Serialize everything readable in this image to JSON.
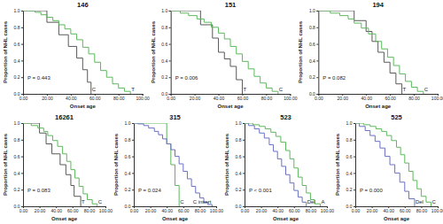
{
  "chart_data": [
    {
      "type": "line",
      "title": "146",
      "x_label": "Onset age",
      "y_label": "Proportion of NHL cases",
      "xlim": [
        0,
        100
      ],
      "ylim": [
        0,
        1
      ],
      "xticks": [
        {
          "value": 0,
          "label": "0.00"
        },
        {
          "value": 20,
          "label": "20.00"
        },
        {
          "value": 40,
          "label": "40.00"
        },
        {
          "value": 60,
          "label": "60.00"
        },
        {
          "value": 80,
          "label": "80.00"
        },
        {
          "value": 100,
          "label": "100.00"
        }
      ],
      "yticks": [
        {
          "value": 0,
          "label": "0.0"
        },
        {
          "value": 0.2,
          "label": "0.2"
        },
        {
          "value": 0.4,
          "label": "0.4"
        },
        {
          "value": 0.6,
          "label": "0.6"
        },
        {
          "value": 0.8,
          "label": "0.8"
        },
        {
          "value": 1,
          "label": "1.0"
        }
      ],
      "annotations": [
        "P = 0.443"
      ],
      "series": [
        {
          "name": "C",
          "color": "#595959",
          "line_style": "step",
          "x": [
            0,
            20,
            30,
            38,
            45,
            50,
            54,
            57
          ],
          "values": [
            1,
            0.86,
            0.71,
            0.57,
            0.43,
            0.29,
            0.14,
            0
          ]
        },
        {
          "name": "T",
          "color": "#5cb85c",
          "line_style": "step",
          "x": [
            0,
            10,
            15,
            20,
            25,
            30,
            35,
            40,
            45,
            50,
            55,
            60,
            65,
            70,
            75,
            80,
            85,
            90
          ],
          "values": [
            1,
            0.98,
            0.95,
            0.92,
            0.88,
            0.83,
            0.78,
            0.72,
            0.65,
            0.56,
            0.48,
            0.38,
            0.28,
            0.2,
            0.12,
            0.07,
            0.03,
            0
          ]
        }
      ]
    },
    {
      "type": "line",
      "title": "151",
      "x_label": "Onset age",
      "y_label": "Proportion of NHL cases",
      "xlim": [
        0,
        100
      ],
      "ylim": [
        0,
        1
      ],
      "xticks": [
        {
          "value": 0,
          "label": "0.00"
        },
        {
          "value": 20,
          "label": "20.00"
        },
        {
          "value": 40,
          "label": "40.00"
        },
        {
          "value": 60,
          "label": "60.00"
        },
        {
          "value": 80,
          "label": "80.00"
        },
        {
          "value": 100,
          "label": "100.00"
        }
      ],
      "yticks": [
        {
          "value": 0,
          "label": "0.0"
        },
        {
          "value": 0.2,
          "label": "0.2"
        },
        {
          "value": 0.4,
          "label": "0.4"
        },
        {
          "value": 0.6,
          "label": "0.6"
        },
        {
          "value": 0.8,
          "label": "0.8"
        },
        {
          "value": 1,
          "label": "1.0"
        }
      ],
      "annotations": [
        "P = 0.006"
      ],
      "series": [
        {
          "name": "T",
          "color": "#595959",
          "line_style": "step",
          "x": [
            0,
            25,
            35,
            40,
            45,
            50,
            55,
            60
          ],
          "values": [
            1,
            0.83,
            0.67,
            0.5,
            0.42,
            0.33,
            0.17,
            0
          ]
        },
        {
          "name": "C",
          "color": "#5cb85c",
          "line_style": "step",
          "x": [
            0,
            8,
            15,
            22,
            28,
            34,
            40,
            45,
            50,
            55,
            60,
            65,
            70,
            75,
            80,
            85,
            90
          ],
          "values": [
            1,
            0.97,
            0.94,
            0.9,
            0.86,
            0.8,
            0.73,
            0.66,
            0.57,
            0.48,
            0.39,
            0.3,
            0.21,
            0.13,
            0.07,
            0.03,
            0
          ]
        }
      ]
    },
    {
      "type": "line",
      "title": "194",
      "x_label": "Onset age",
      "y_label": "Proportion of NHL cases",
      "xlim": [
        0,
        100
      ],
      "ylim": [
        0,
        1
      ],
      "xticks": [
        {
          "value": 0,
          "label": "0.00"
        },
        {
          "value": 20,
          "label": "20.00"
        },
        {
          "value": 40,
          "label": "40.00"
        },
        {
          "value": 60,
          "label": "60.00"
        },
        {
          "value": 80,
          "label": "80.00"
        },
        {
          "value": 100,
          "label": "100.00"
        }
      ],
      "yticks": [
        {
          "value": 0,
          "label": "0.0"
        },
        {
          "value": 0.2,
          "label": "0.2"
        },
        {
          "value": 0.4,
          "label": "0.4"
        },
        {
          "value": 0.6,
          "label": "0.6"
        },
        {
          "value": 0.8,
          "label": "0.8"
        },
        {
          "value": 1,
          "label": "1.0"
        }
      ],
      "annotations": [
        "P = 0.082"
      ],
      "series": [
        {
          "name": "T",
          "color": "#595959",
          "line_style": "step",
          "x": [
            0,
            30,
            40,
            45,
            50,
            55,
            60,
            65,
            70
          ],
          "values": [
            1,
            0.88,
            0.75,
            0.63,
            0.5,
            0.38,
            0.25,
            0.12,
            0
          ]
        },
        {
          "name": "C",
          "color": "#5cb85c",
          "line_style": "step",
          "x": [
            0,
            10,
            18,
            25,
            30,
            36,
            42,
            48,
            53,
            58,
            63,
            68,
            73,
            78,
            83,
            88
          ],
          "values": [
            1,
            0.97,
            0.94,
            0.9,
            0.85,
            0.79,
            0.72,
            0.63,
            0.54,
            0.44,
            0.34,
            0.24,
            0.15,
            0.08,
            0.03,
            0
          ]
        }
      ]
    },
    {
      "type": "line",
      "title": "16261",
      "x_label": "Onset age",
      "y_label": "Proportion of NHL cases",
      "xlim": [
        0,
        100
      ],
      "ylim": [
        0,
        1
      ],
      "xticks": [
        {
          "value": 0,
          "label": "0.00"
        },
        {
          "value": 20,
          "label": "20.00"
        },
        {
          "value": 40,
          "label": "40.00"
        },
        {
          "value": 60,
          "label": "60.00"
        },
        {
          "value": 80,
          "label": "80.00"
        },
        {
          "value": 100,
          "label": "100.00"
        }
      ],
      "yticks": [
        {
          "value": 0,
          "label": "0.0"
        },
        {
          "value": 0.2,
          "label": "0.2"
        },
        {
          "value": 0.4,
          "label": "0.4"
        },
        {
          "value": 0.6,
          "label": "0.6"
        },
        {
          "value": 0.8,
          "label": "0.8"
        },
        {
          "value": 1,
          "label": "1.0"
        }
      ],
      "annotations": [
        "P = 0.083"
      ],
      "series": [
        {
          "name": "T",
          "color": "#595959",
          "line_style": "step",
          "x": [
            0,
            20,
            28,
            35,
            45,
            52,
            58,
            62,
            70
          ],
          "values": [
            1,
            0.88,
            0.75,
            0.63,
            0.5,
            0.38,
            0.25,
            0.12,
            0
          ]
        },
        {
          "name": "C",
          "color": "#5cb85c",
          "line_style": "step",
          "x": [
            0,
            10,
            18,
            25,
            30,
            36,
            42,
            48,
            53,
            58,
            63,
            68,
            73,
            78,
            84,
            90
          ],
          "values": [
            1,
            0.97,
            0.94,
            0.9,
            0.85,
            0.79,
            0.72,
            0.63,
            0.54,
            0.44,
            0.34,
            0.24,
            0.15,
            0.08,
            0.03,
            0
          ]
        }
      ]
    },
    {
      "type": "line",
      "title": "315",
      "x_label": "Onset age",
      "y_label": "Proportion of NHL cases",
      "xlim": [
        0,
        100
      ],
      "ylim": [
        0,
        1
      ],
      "xticks": [
        {
          "value": 0,
          "label": "0.00"
        },
        {
          "value": 20,
          "label": "20.00"
        },
        {
          "value": 40,
          "label": "40.00"
        },
        {
          "value": 60,
          "label": "60.00"
        },
        {
          "value": 80,
          "label": "80.00"
        },
        {
          "value": 100,
          "label": "100.00"
        }
      ],
      "yticks": [
        {
          "value": 0,
          "label": "0.0"
        },
        {
          "value": 0.2,
          "label": "0.2"
        },
        {
          "value": 0.4,
          "label": "0.4"
        },
        {
          "value": 0.6,
          "label": "0.6"
        },
        {
          "value": 0.8,
          "label": "0.8"
        },
        {
          "value": 1,
          "label": "1.0"
        }
      ],
      "annotations": [
        "P = 0.024"
      ],
      "series": [
        {
          "name": "C",
          "color": "#5cb85c",
          "line_style": "step",
          "x": [
            0,
            40,
            45,
            50,
            55
          ],
          "values": [
            1,
            0.75,
            0.5,
            0.25,
            0
          ]
        },
        {
          "name": "C insert",
          "color": "#6a70c4",
          "line_style": "step",
          "x": [
            0,
            5,
            12,
            18,
            25,
            30,
            35,
            40,
            45,
            50,
            55,
            60,
            65,
            70,
            75,
            80,
            85,
            90,
            95
          ],
          "values": [
            1,
            0.99,
            0.97,
            0.94,
            0.9,
            0.86,
            0.81,
            0.75,
            0.68,
            0.6,
            0.51,
            0.42,
            0.33,
            0.24,
            0.16,
            0.1,
            0.05,
            0.02,
            0
          ]
        }
      ]
    },
    {
      "type": "line",
      "title": "523",
      "x_label": "Onset age",
      "y_label": "Proportion of NHL cases",
      "xlim": [
        0,
        100
      ],
      "ylim": [
        0,
        1
      ],
      "xticks": [
        {
          "value": 0,
          "label": "0.00"
        },
        {
          "value": 20,
          "label": "20.00"
        },
        {
          "value": 40,
          "label": "40.00"
        },
        {
          "value": 60,
          "label": "60.00"
        },
        {
          "value": 80,
          "label": "80.00"
        },
        {
          "value": 100,
          "label": "100.00"
        }
      ],
      "yticks": [
        {
          "value": 0,
          "label": "0.0"
        },
        {
          "value": 0.2,
          "label": "0.2"
        },
        {
          "value": 0.4,
          "label": "0.4"
        },
        {
          "value": 0.6,
          "label": "0.6"
        },
        {
          "value": 0.8,
          "label": "0.8"
        },
        {
          "value": 1,
          "label": "1.0"
        }
      ],
      "annotations": [
        "P < 0.001"
      ],
      "series": [
        {
          "name": "Del",
          "color": "#6a70c4",
          "line_style": "step",
          "x": [
            0,
            5,
            12,
            18,
            24,
            30,
            35,
            40,
            45,
            50,
            55,
            60,
            65,
            70,
            75
          ],
          "values": [
            1,
            0.97,
            0.93,
            0.88,
            0.82,
            0.74,
            0.66,
            0.57,
            0.48,
            0.38,
            0.28,
            0.19,
            0.11,
            0.05,
            0
          ]
        },
        {
          "name": "A",
          "color": "#5cb85c",
          "line_style": "step",
          "x": [
            0,
            10,
            18,
            25,
            32,
            38,
            44,
            50,
            55,
            60,
            65,
            70,
            75,
            80,
            85,
            92
          ],
          "values": [
            1,
            0.98,
            0.96,
            0.93,
            0.89,
            0.84,
            0.77,
            0.67,
            0.57,
            0.46,
            0.35,
            0.25,
            0.16,
            0.08,
            0.03,
            0
          ]
        }
      ]
    },
    {
      "type": "line",
      "title": "525",
      "x_label": "Onset age",
      "y_label": "Proportion of NHL cases",
      "xlim": [
        0,
        100
      ],
      "ylim": [
        0,
        1
      ],
      "xticks": [
        {
          "value": 0,
          "label": "0.00"
        },
        {
          "value": 20,
          "label": "20.00"
        },
        {
          "value": 40,
          "label": "40.00"
        },
        {
          "value": 60,
          "label": "60.00"
        },
        {
          "value": 80,
          "label": "80.00"
        },
        {
          "value": 100,
          "label": "100.00"
        }
      ],
      "yticks": [
        {
          "value": 0,
          "label": "0.0"
        },
        {
          "value": 0.2,
          "label": "0.2"
        },
        {
          "value": 0.4,
          "label": "0.4"
        },
        {
          "value": 0.6,
          "label": "0.6"
        },
        {
          "value": 0.8,
          "label": "0.8"
        },
        {
          "value": 1,
          "label": "1.0"
        }
      ],
      "annotations": [
        "P = 0.000"
      ],
      "series": [
        {
          "name": "Del",
          "color": "#6a70c4",
          "line_style": "step",
          "x": [
            0,
            5,
            12,
            18,
            24,
            30,
            36,
            42,
            48,
            54,
            60,
            65,
            72
          ],
          "values": [
            1,
            0.96,
            0.91,
            0.85,
            0.78,
            0.7,
            0.6,
            0.5,
            0.4,
            0.29,
            0.18,
            0.09,
            0
          ]
        },
        {
          "name": "C",
          "color": "#5cb85c",
          "line_style": "step",
          "x": [
            0,
            10,
            18,
            25,
            32,
            38,
            44,
            50,
            55,
            60,
            65,
            70,
            75,
            80,
            86,
            92
          ],
          "values": [
            1,
            0.98,
            0.96,
            0.93,
            0.9,
            0.85,
            0.79,
            0.71,
            0.62,
            0.52,
            0.42,
            0.31,
            0.21,
            0.12,
            0.05,
            0
          ]
        }
      ]
    }
  ]
}
